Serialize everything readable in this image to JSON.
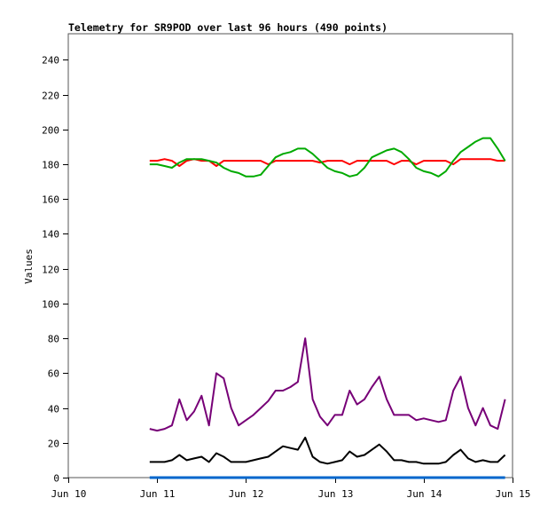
{
  "chart_data": {
    "type": "line",
    "title": "Telemetry for SR9POD over last 96 hours (490 points)",
    "xlabel": "",
    "ylabel": "Values",
    "x_unit": "hours since Jun 10 00:00",
    "xlim": [
      0,
      120
    ],
    "ylim": [
      0,
      255
    ],
    "grid": false,
    "x_ticks": [
      {
        "value": 0,
        "label": "Jun 10"
      },
      {
        "value": 24,
        "label": "Jun 11"
      },
      {
        "value": 48,
        "label": "Jun 12"
      },
      {
        "value": 72,
        "label": "Jun 13"
      },
      {
        "value": 96,
        "label": "Jun 14"
      },
      {
        "value": 120,
        "label": "Jun 15"
      }
    ],
    "y_ticks": [
      0,
      20,
      40,
      60,
      80,
      100,
      120,
      140,
      160,
      180,
      200,
      220,
      240
    ],
    "x": [
      22,
      24,
      26,
      28,
      30,
      32,
      34,
      36,
      38,
      40,
      42,
      44,
      46,
      48,
      50,
      52,
      54,
      56,
      58,
      60,
      62,
      64,
      66,
      68,
      70,
      72,
      74,
      76,
      78,
      80,
      82,
      84,
      86,
      88,
      90,
      92,
      94,
      96,
      98,
      100,
      102,
      104,
      106,
      108,
      110,
      112,
      114,
      116,
      118
    ],
    "series": [
      {
        "name": "red",
        "color": "#ff0000",
        "values": [
          182,
          182,
          183,
          182,
          179,
          182,
          183,
          182,
          182,
          179,
          182,
          182,
          182,
          182,
          182,
          182,
          180,
          182,
          182,
          182,
          182,
          182,
          182,
          181,
          182,
          182,
          182,
          180,
          182,
          182,
          182,
          182,
          182,
          180,
          182,
          182,
          180,
          182,
          182,
          182,
          182,
          180,
          183,
          183,
          183,
          183,
          183,
          182,
          182
        ]
      },
      {
        "name": "green",
        "color": "#00aa00",
        "values": [
          180,
          180,
          179,
          178,
          181,
          183,
          183,
          183,
          182,
          181,
          178,
          176,
          175,
          173,
          173,
          174,
          179,
          184,
          186,
          187,
          189,
          189,
          186,
          182,
          178,
          176,
          175,
          173,
          174,
          178,
          184,
          186,
          188,
          189,
          187,
          183,
          178,
          176,
          175,
          173,
          176,
          182,
          187,
          190,
          193,
          195,
          195,
          189,
          182
        ]
      },
      {
        "name": "purple",
        "color": "#770077",
        "values": [
          28,
          27,
          28,
          30,
          45,
          33,
          38,
          47,
          30,
          60,
          57,
          40,
          30,
          33,
          36,
          40,
          44,
          50,
          50,
          52,
          55,
          80,
          45,
          35,
          30,
          36,
          36,
          50,
          42,
          45,
          52,
          58,
          45,
          36,
          36,
          36,
          33,
          34,
          33,
          32,
          33,
          50,
          58,
          40,
          30,
          40,
          30,
          28,
          45
        ]
      },
      {
        "name": "black",
        "color": "#000000",
        "values": [
          9,
          9,
          9,
          10,
          13,
          10,
          11,
          12,
          9,
          14,
          12,
          9,
          9,
          9,
          10,
          11,
          12,
          15,
          18,
          17,
          16,
          23,
          12,
          9,
          8,
          9,
          10,
          15,
          12,
          13,
          16,
          19,
          15,
          10,
          10,
          9,
          9,
          8,
          8,
          8,
          9,
          13,
          16,
          11,
          9,
          10,
          9,
          9,
          13
        ]
      },
      {
        "name": "blue",
        "color": "#0066cc",
        "values": [
          0,
          0,
          0,
          0,
          0,
          0,
          0,
          0,
          0,
          0,
          0,
          0,
          0,
          0,
          0,
          0,
          0,
          0,
          0,
          0,
          0,
          0,
          0,
          0,
          0,
          0,
          0,
          0,
          0,
          0,
          0,
          0,
          0,
          0,
          0,
          0,
          0,
          0,
          0,
          0,
          0,
          0,
          0,
          0,
          0,
          0,
          0,
          0,
          0
        ]
      }
    ]
  }
}
